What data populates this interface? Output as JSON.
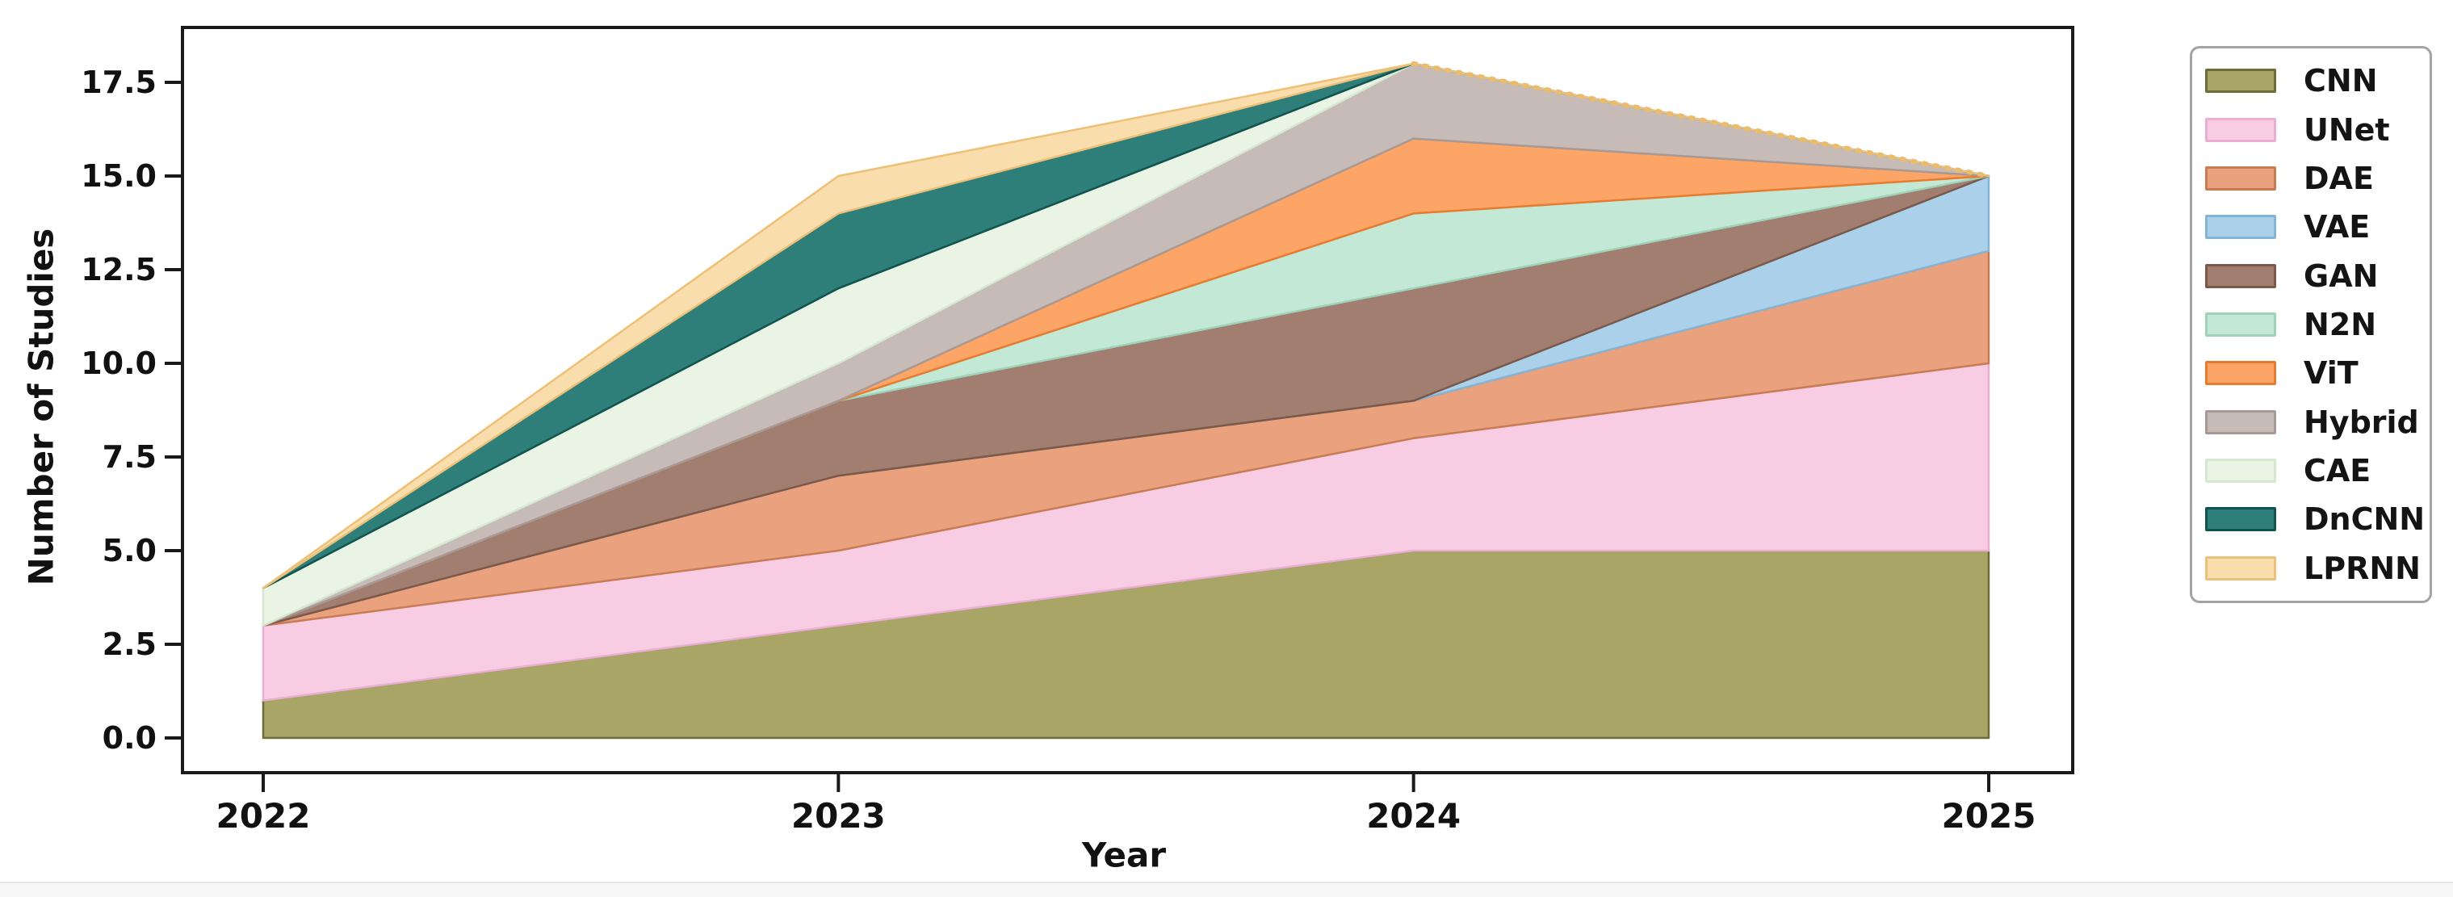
{
  "chart_data": {
    "type": "area",
    "stacked": true,
    "title": "",
    "xlabel": "Year",
    "ylabel": "Number of Studies",
    "x": [
      2022,
      2023,
      2024,
      2025
    ],
    "xticks": [
      "2022",
      "2023",
      "2024",
      "2025"
    ],
    "ytick_values": [
      0.0,
      2.5,
      5.0,
      7.5,
      10.0,
      12.5,
      15.0,
      17.5
    ],
    "yticks": [
      "0.0",
      "2.5",
      "5.0",
      "7.5",
      "10.0",
      "12.5",
      "15.0",
      "17.5"
    ],
    "ylim": [
      -0.9,
      18.9
    ],
    "grid": false,
    "legend_position": "outside-upper-right",
    "series": [
      {
        "name": "CNN",
        "values": [
          1,
          3,
          5,
          5
        ],
        "fill": "#a9a566",
        "edge": "#6e6c38"
      },
      {
        "name": "UNet",
        "values": [
          2,
          2,
          3,
          5
        ],
        "fill": "#f8cde3",
        "edge": "#e9aed2"
      },
      {
        "name": "DAE",
        "values": [
          0,
          2,
          1,
          3
        ],
        "fill": "#e9a17e",
        "edge": "#c97c51"
      },
      {
        "name": "VAE",
        "values": [
          0,
          0,
          0,
          2
        ],
        "fill": "#abd1ea",
        "edge": "#84b4d6"
      },
      {
        "name": "GAN",
        "values": [
          0,
          2,
          3,
          0
        ],
        "fill": "#a17e70",
        "edge": "#7b584a"
      },
      {
        "name": "N2N",
        "values": [
          0,
          0,
          2,
          0
        ],
        "fill": "#c3e9d6",
        "edge": "#9ed2b9"
      },
      {
        "name": "ViT",
        "values": [
          0,
          0,
          2,
          0
        ],
        "fill": "#fda566",
        "edge": "#e87b2e"
      },
      {
        "name": "Hybrid",
        "values": [
          0,
          1,
          2,
          0
        ],
        "fill": "#c7bbb7",
        "edge": "#a79a96"
      },
      {
        "name": "CAE",
        "values": [
          1,
          2,
          0,
          0
        ],
        "fill": "#e9f4e5",
        "edge": "#d6e8d0"
      },
      {
        "name": "DnCNN",
        "values": [
          0,
          2,
          0,
          0
        ],
        "fill": "#2e7e79",
        "edge": "#11534f"
      },
      {
        "name": "LPRNN",
        "values": [
          0,
          1,
          0,
          0
        ],
        "fill": "#f9ddad",
        "edge": "#eec077"
      }
    ],
    "totals": [
      4,
      15,
      18,
      15
    ],
    "top_edge_dotted_segment": {
      "from_x": 2024,
      "to_x": 2025,
      "color": "#eabc6e"
    }
  },
  "legend": {
    "items": [
      "CNN",
      "UNet",
      "DAE",
      "VAE",
      "GAN",
      "N2N",
      "ViT",
      "Hybrid",
      "CAE",
      "DnCNN",
      "LPRNN"
    ]
  },
  "colors": {
    "frame": "#1a1a1a",
    "background": "#ffffff",
    "legend_border": "#a3a3a3"
  }
}
